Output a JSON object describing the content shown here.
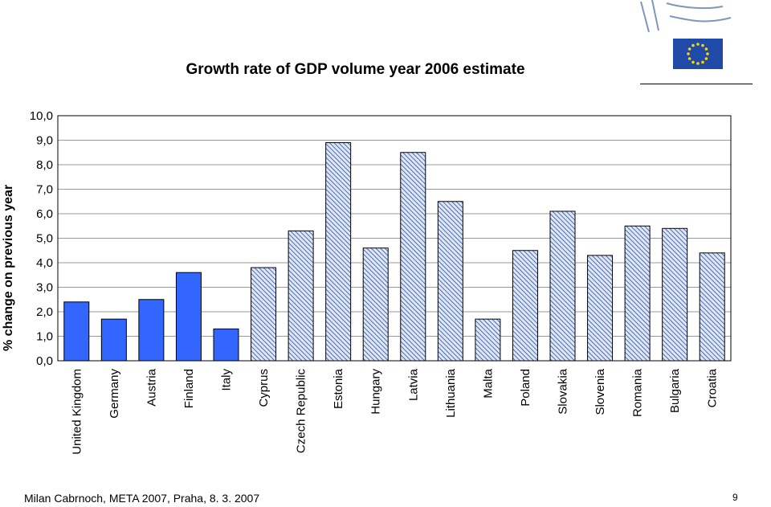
{
  "colors": {
    "solid_bar": "#3366ff",
    "hatched_bar_bg": "#dde6f8",
    "hatched_bar_line": "#2f4f8f",
    "gridline": "#999999",
    "eu_flag_blue": "#1f4aa8",
    "eu_flag_stars": "#ffd500",
    "logo_lines": "#7f98b8"
  },
  "logo": {
    "icon": "eu-flag-icon"
  },
  "footer": {
    "text": "Milan Cabrnoch, META 2007, Praha, 8. 3. 2007",
    "page_number": "9"
  },
  "chart_data": {
    "type": "bar",
    "title": "Growth rate of GDP volume year 2006 estimate",
    "xlabel": "",
    "ylabel": "% change on previous year",
    "ylim": [
      0,
      10
    ],
    "yticks": [
      "0,0",
      "1,0",
      "2,0",
      "3,0",
      "4,0",
      "5,0",
      "6,0",
      "7,0",
      "8,0",
      "9,0",
      "10,0"
    ],
    "grid": true,
    "categories": [
      "United Kingdom",
      "Germany",
      "Austria",
      "Finland",
      "Italy",
      "Cyprus",
      "Czech Republic",
      "Estonia",
      "Hungary",
      "Latvia",
      "Lithuania",
      "Malta",
      "Poland",
      "Slovakia",
      "Slovenia",
      "Romania",
      "Bulgaria",
      "Croatia"
    ],
    "values": [
      2.4,
      1.7,
      2.5,
      3.6,
      1.3,
      3.8,
      5.3,
      8.9,
      4.6,
      8.5,
      6.5,
      1.7,
      4.5,
      6.1,
      4.3,
      5.5,
      5.4,
      4.4
    ],
    "styles": [
      "solid",
      "solid",
      "solid",
      "solid",
      "solid",
      "hatched",
      "hatched",
      "hatched",
      "hatched",
      "hatched",
      "hatched",
      "hatched",
      "hatched",
      "hatched",
      "hatched",
      "hatched",
      "hatched",
      "hatched"
    ]
  }
}
